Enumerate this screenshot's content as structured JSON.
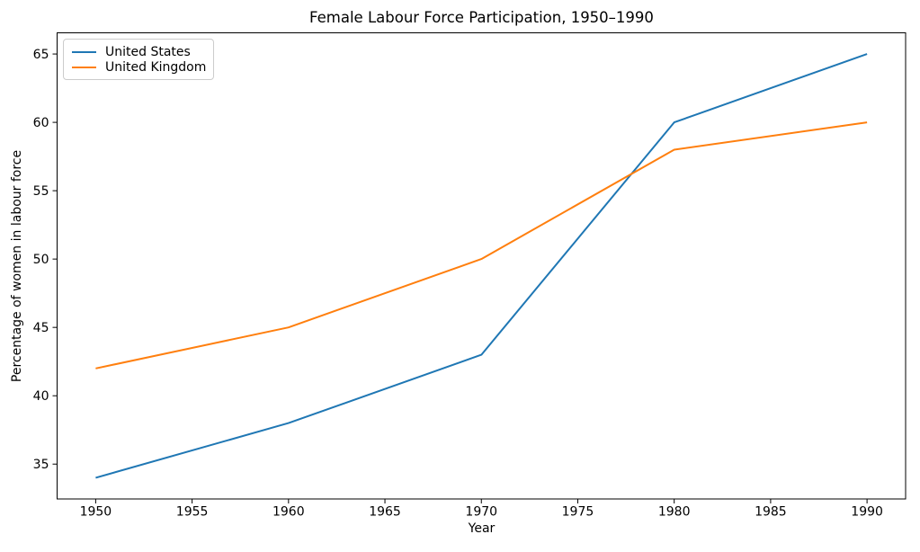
{
  "chart_data": {
    "type": "line",
    "title": "Female Labour Force Participation, 1950–1990",
    "xlabel": "Year",
    "ylabel": "Percentage of women in labour force",
    "x": [
      1950,
      1960,
      1970,
      1980,
      1990
    ],
    "series": [
      {
        "name": "United States",
        "color": "#1f77b4",
        "values": [
          34,
          38,
          43,
          60,
          65
        ]
      },
      {
        "name": "United Kingdom",
        "color": "#ff7f0e",
        "values": [
          42,
          45,
          50,
          58,
          60
        ]
      }
    ],
    "xticks": [
      1950,
      1955,
      1960,
      1965,
      1970,
      1975,
      1980,
      1985,
      1990
    ],
    "yticks": [
      35,
      40,
      45,
      50,
      55,
      60,
      65
    ],
    "xlim": [
      1948,
      1992
    ],
    "ylim": [
      32.45,
      66.55
    ],
    "grid": false,
    "legend_position": "upper left",
    "line_width": 2,
    "spine_color": "#000000",
    "background_color": "#ffffff"
  }
}
